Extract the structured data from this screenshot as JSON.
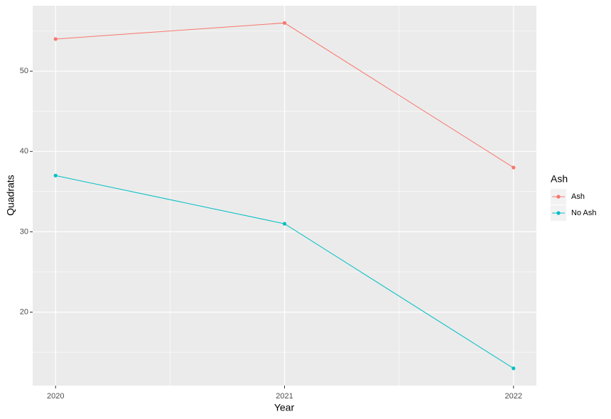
{
  "chart_data": {
    "type": "line",
    "x_label": "Year",
    "y_label": "Quadrats",
    "legend_title": "Ash",
    "x": [
      2020,
      2021,
      2022
    ],
    "series": [
      {
        "name": "Ash",
        "color": "#F8766D",
        "values": [
          54,
          56,
          38
        ]
      },
      {
        "name": "No Ash",
        "color": "#00BFC4",
        "values": [
          37,
          31,
          13
        ]
      }
    ],
    "xlim": [
      2019.9,
      2022.1
    ],
    "xticks": [
      2020,
      2021,
      2022
    ],
    "ylim": [
      10.85,
      58.15
    ],
    "yticks": [
      20,
      30,
      40,
      50
    ],
    "grid": true,
    "legend": "right"
  }
}
